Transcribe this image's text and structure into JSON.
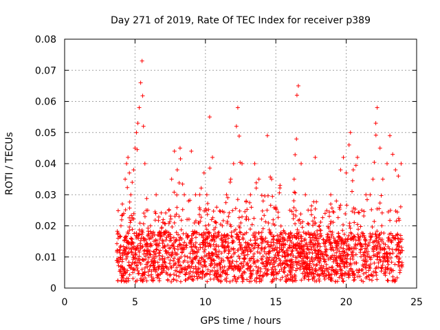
{
  "chart_data": {
    "type": "scatter",
    "title": "Day 271 of 2019, Rate Of TEC Index for receiver p389",
    "xlabel": "GPS time / hours",
    "ylabel": "ROTI / TECUs",
    "xlim": [
      0,
      25
    ],
    "ylim": [
      0,
      0.08
    ],
    "x_ticks": [
      "0",
      "5",
      "10",
      "15",
      "20",
      "25"
    ],
    "y_ticks": [
      "0",
      "0.01",
      "0.02",
      "0.03",
      "0.04",
      "0.05",
      "0.06",
      "0.07",
      "0.08"
    ],
    "grid": true,
    "marker": "plus",
    "point_color": "#ff0000",
    "x_range_of_data": [
      3.7,
      24.0
    ],
    "series": [
      {
        "points": [
          [
            3.8,
            0.016
          ],
          [
            3.9,
            0.012
          ],
          [
            4.0,
            0.02
          ],
          [
            4.1,
            0.027
          ],
          [
            4.2,
            0.024
          ],
          [
            4.3,
            0.035
          ],
          [
            4.4,
            0.04
          ],
          [
            4.5,
            0.042
          ],
          [
            4.6,
            0.037
          ],
          [
            4.7,
            0.03
          ],
          [
            4.8,
            0.034
          ],
          [
            4.9,
            0.038
          ],
          [
            5.0,
            0.045
          ],
          [
            5.1,
            0.05
          ],
          [
            5.2,
            0.053
          ],
          [
            5.3,
            0.058
          ],
          [
            5.4,
            0.066
          ],
          [
            5.5,
            0.073
          ],
          [
            5.6,
            0.052
          ],
          [
            5.7,
            0.04
          ],
          [
            5.9,
            0.025
          ],
          [
            6.1,
            0.02
          ],
          [
            6.3,
            0.018
          ],
          [
            6.5,
            0.03
          ],
          [
            7.0,
            0.022
          ],
          [
            7.4,
            0.025
          ],
          [
            7.6,
            0.035
          ],
          [
            7.8,
            0.044
          ],
          [
            8.0,
            0.038
          ],
          [
            8.2,
            0.045
          ],
          [
            8.5,
            0.03
          ],
          [
            8.8,
            0.028
          ],
          [
            9.0,
            0.044
          ],
          [
            9.3,
            0.03
          ],
          [
            9.6,
            0.03
          ],
          [
            9.9,
            0.037
          ],
          [
            10.1,
            0.03
          ],
          [
            10.3,
            0.055
          ],
          [
            10.5,
            0.042
          ],
          [
            10.8,
            0.026
          ],
          [
            11.2,
            0.02
          ],
          [
            11.5,
            0.03
          ],
          [
            11.8,
            0.035
          ],
          [
            12.0,
            0.04
          ],
          [
            12.2,
            0.052
          ],
          [
            12.3,
            0.058
          ],
          [
            12.6,
            0.04
          ],
          [
            12.9,
            0.028
          ],
          [
            13.2,
            0.03
          ],
          [
            13.5,
            0.04
          ],
          [
            13.8,
            0.035
          ],
          [
            14.1,
            0.028
          ],
          [
            14.4,
            0.049
          ],
          [
            14.7,
            0.035
          ],
          [
            15.0,
            0.026
          ],
          [
            15.3,
            0.033
          ],
          [
            15.6,
            0.018
          ],
          [
            16.0,
            0.025
          ],
          [
            16.3,
            0.035
          ],
          [
            16.5,
            0.062
          ],
          [
            16.6,
            0.065
          ],
          [
            16.8,
            0.04
          ],
          [
            17.1,
            0.03
          ],
          [
            17.5,
            0.025
          ],
          [
            17.8,
            0.042
          ],
          [
            18.1,
            0.02
          ],
          [
            18.5,
            0.024
          ],
          [
            18.9,
            0.03
          ],
          [
            19.3,
            0.028
          ],
          [
            19.6,
            0.038
          ],
          [
            19.8,
            0.042
          ],
          [
            20.0,
            0.037
          ],
          [
            20.2,
            0.046
          ],
          [
            20.3,
            0.05
          ],
          [
            20.5,
            0.038
          ],
          [
            20.8,
            0.042
          ],
          [
            21.1,
            0.025
          ],
          [
            21.4,
            0.03
          ],
          [
            21.7,
            0.03
          ],
          [
            21.9,
            0.035
          ],
          [
            22.1,
            0.053
          ],
          [
            22.2,
            0.058
          ],
          [
            22.4,
            0.045
          ],
          [
            22.6,
            0.035
          ],
          [
            22.9,
            0.04
          ],
          [
            23.1,
            0.049
          ],
          [
            23.3,
            0.043
          ],
          [
            23.5,
            0.038
          ],
          [
            23.7,
            0.036
          ],
          [
            23.9,
            0.04
          ]
        ]
      }
    ]
  }
}
